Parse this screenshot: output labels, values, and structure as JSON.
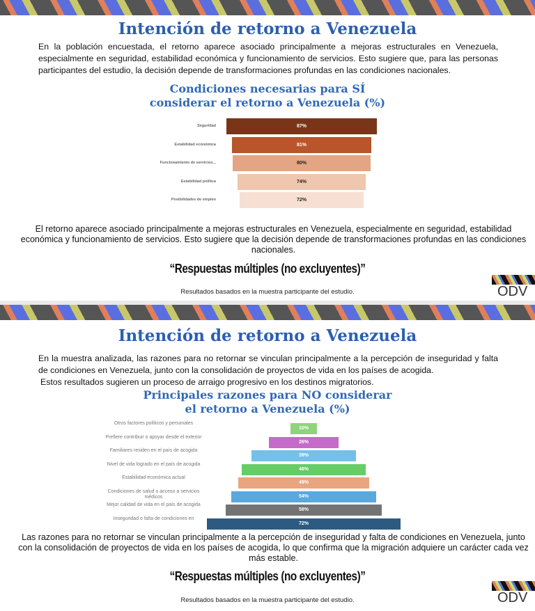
{
  "slide1": {
    "title": "Intención de retorno a Venezuela",
    "intro": "En la población encuestada, el retorno aparece asociado principalmente a mejoras estructurales en Venezuela, especialmente en seguridad, estabilidad económica y funcionamiento de servicios. Esto sugiere que, para las personas participantes del estudio, la decisión depende de transformaciones profundas en las condiciones nacionales.",
    "chart_title_line1": "Condiciones necesarias para SÍ",
    "chart_title_line2": "considerar el retorno a Venezuela (%)",
    "caption": "El retorno aparece asociado principalmente a mejoras estructurales en Venezuela, especialmente en seguridad, estabilidad económica y funcionamiento de servicios. Esto sugiere que la decisión depende de transformaciones profundas en las condiciones nacionales.",
    "note": "“Respuestas múltiples (no excluyentes)”",
    "source": "Resultados basados en la muestra participante del estudio.",
    "logo": "ODV"
  },
  "slide2": {
    "title": "Intención de retorno a Venezuela",
    "intro": "En la muestra analizada, las razones para no retornar se vinculan principalmente a la percepción de inseguridad y falta de condiciones en Venezuela, junto con la consolidación de proyectos de vida en los países de acogida.",
    "intro2": "Estos resultados sugieren un proceso de arraigo progresivo en los destinos migratorios.",
    "chart_title_line1": "Principales razones para NO considerar",
    "chart_title_line2": "el retorno a Venezuela (%)",
    "caption": "Las razones para no retornar se vinculan principalmente a la percepción de inseguridad y falta de condiciones en Venezuela, junto con la consolidación de proyectos de vida en los países de acogida, lo que confirma que la migración adquiere un carácter cada vez más estable.",
    "note": "“Respuestas múltiples (no excluyentes)”",
    "source": "Resultados basados en la muestra participante del estudio.",
    "logo": "ODV"
  },
  "chart_data": [
    {
      "type": "bar",
      "orientation": "horizontal-funnel",
      "title": "Condiciones necesarias para SÍ considerar el retorno a Venezuela (%)",
      "categories": [
        "Seguridad",
        "Estabilidad económica",
        "Funcionamiento de servicios...",
        "Estabilidad política",
        "Posibilidades de empleo"
      ],
      "values": [
        87,
        81,
        80,
        74,
        72
      ],
      "labels": [
        "87%",
        "81%",
        "80%",
        "74%",
        "72%"
      ],
      "colors": [
        "#7a3518",
        "#b8552a",
        "#e3a583",
        "#efc6ae",
        "#f7e0d3"
      ],
      "label_colors": [
        "#ffffff",
        "#ffffff",
        "#222222",
        "#222222",
        "#222222"
      ]
    },
    {
      "type": "bar",
      "orientation": "horizontal-funnel",
      "title": "Principales razones para NO considerar el retorno a Venezuela (%)",
      "categories": [
        "Otros factores políticos y personales",
        "Prefiere contribuir o apoyar desde el exterior",
        "Familiares residen en el país de acogida",
        "Nivel de vida logrado en el país de acogida",
        "Estabilidad económica actual",
        "Condiciones de salud o acceso a servicios médicos",
        "Mejor calidad de vida en el país de acogida",
        "Inseguridad o falta de condiciones en"
      ],
      "values": [
        10,
        26,
        39,
        46,
        49,
        54,
        58,
        72
      ],
      "labels": [
        "10%",
        "26%",
        "39%",
        "46%",
        "49%",
        "54%",
        "58%",
        "72%"
      ],
      "colors": [
        "#8fd47c",
        "#c46cc8",
        "#74c0ea",
        "#66cc66",
        "#e9a580",
        "#5aa8dc",
        "#737373",
        "#2d5a80"
      ]
    }
  ]
}
